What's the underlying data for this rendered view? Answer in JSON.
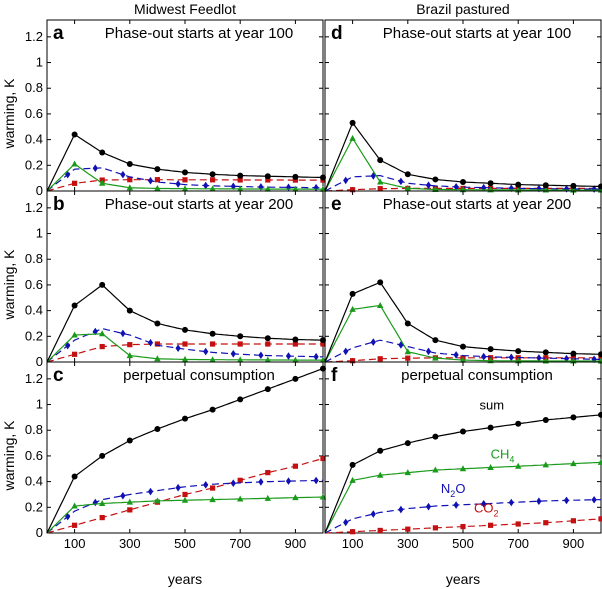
{
  "figure": {
    "columns": [
      "Midwest Feedlot",
      "Brazil pastured"
    ],
    "y_axis_label": "warming, K",
    "x_axis_label": "years",
    "series_colors": {
      "sum": "#000000",
      "CH4": "#1a9a1a",
      "N2O": "#1010b4",
      "CO2": "#c41010"
    },
    "series_markers": {
      "sum": "circle",
      "CH4": "triangle",
      "N2O": "diamond",
      "CO2": "square"
    }
  },
  "chart_data": [
    {
      "type": "line",
      "panel": "a",
      "column": "Midwest Feedlot",
      "title": "Phase-out starts at year 100",
      "xlim": [
        0,
        1000
      ],
      "ylim": [
        0,
        1.3
      ],
      "xticks": [
        100,
        300,
        500,
        700,
        900
      ],
      "yticks": [
        0,
        0.2,
        0.4,
        0.6,
        0.8,
        1,
        1.2
      ],
      "x": [
        0,
        100,
        200,
        300,
        400,
        500,
        600,
        700,
        800,
        900,
        1000
      ],
      "series": [
        {
          "key": "sum",
          "values": [
            0,
            0.44,
            0.3,
            0.21,
            0.17,
            0.145,
            0.13,
            0.12,
            0.115,
            0.11,
            0.105
          ]
        },
        {
          "key": "CH4",
          "values": [
            0,
            0.21,
            0.06,
            0.025,
            0.02,
            0.018,
            0.017,
            0.016,
            0.015,
            0.015,
            0.014
          ]
        },
        {
          "key": "N2O",
          "values": [
            0,
            0.17,
            0.18,
            0.11,
            0.07,
            0.05,
            0.04,
            0.035,
            0.03,
            0.028,
            0.025
          ]
        },
        {
          "key": "CO2",
          "values": [
            0,
            0.06,
            0.085,
            0.088,
            0.088,
            0.087,
            0.087,
            0.086,
            0.086,
            0.085,
            0.085
          ]
        }
      ]
    },
    {
      "type": "line",
      "panel": "b",
      "column": "Midwest Feedlot",
      "title": "Phase-out starts at year 200",
      "xlim": [
        0,
        1000
      ],
      "ylim": [
        0,
        1.3
      ],
      "xticks": [
        100,
        300,
        500,
        700,
        900
      ],
      "yticks": [
        0,
        0.2,
        0.4,
        0.6,
        0.8,
        1,
        1.2
      ],
      "x": [
        0,
        100,
        200,
        300,
        400,
        500,
        600,
        700,
        800,
        900,
        1000
      ],
      "series": [
        {
          "key": "sum",
          "values": [
            0,
            0.44,
            0.6,
            0.4,
            0.3,
            0.25,
            0.22,
            0.2,
            0.185,
            0.175,
            0.17
          ]
        },
        {
          "key": "CH4",
          "values": [
            0,
            0.21,
            0.22,
            0.05,
            0.025,
            0.02,
            0.018,
            0.017,
            0.016,
            0.015,
            0.015
          ]
        },
        {
          "key": "N2O",
          "values": [
            0,
            0.17,
            0.26,
            0.21,
            0.13,
            0.1,
            0.075,
            0.06,
            0.05,
            0.045,
            0.04
          ]
        },
        {
          "key": "CO2",
          "values": [
            0,
            0.06,
            0.12,
            0.135,
            0.14,
            0.14,
            0.14,
            0.14,
            0.14,
            0.14,
            0.14
          ]
        }
      ]
    },
    {
      "type": "line",
      "panel": "c",
      "column": "Midwest Feedlot",
      "title": "perpetual consumption",
      "xlim": [
        0,
        1000
      ],
      "ylim": [
        0,
        1.3
      ],
      "xticks": [
        100,
        300,
        500,
        700,
        900
      ],
      "yticks": [
        0,
        0.2,
        0.4,
        0.6,
        0.8,
        1,
        1.2
      ],
      "x": [
        0,
        100,
        200,
        300,
        400,
        500,
        600,
        700,
        800,
        900,
        1000
      ],
      "series": [
        {
          "key": "sum",
          "values": [
            0,
            0.44,
            0.6,
            0.72,
            0.81,
            0.89,
            0.96,
            1.04,
            1.12,
            1.2,
            1.28
          ]
        },
        {
          "key": "CH4",
          "values": [
            0,
            0.21,
            0.23,
            0.24,
            0.25,
            0.255,
            0.26,
            0.265,
            0.27,
            0.275,
            0.28
          ]
        },
        {
          "key": "N2O",
          "values": [
            0,
            0.17,
            0.26,
            0.3,
            0.33,
            0.36,
            0.38,
            0.39,
            0.4,
            0.405,
            0.41
          ]
        },
        {
          "key": "CO2",
          "values": [
            0,
            0.06,
            0.12,
            0.18,
            0.24,
            0.3,
            0.35,
            0.41,
            0.47,
            0.52,
            0.58
          ]
        }
      ]
    },
    {
      "type": "line",
      "panel": "d",
      "column": "Brazil pastured",
      "title": "Phase-out starts at year 100",
      "xlim": [
        0,
        1000
      ],
      "ylim": [
        0,
        1.3
      ],
      "xticks": [
        100,
        300,
        500,
        700,
        900
      ],
      "yticks": [
        0,
        0.2,
        0.4,
        0.6,
        0.8,
        1,
        1.2
      ],
      "x": [
        0,
        100,
        200,
        300,
        400,
        500,
        600,
        700,
        800,
        900,
        1000
      ],
      "series": [
        {
          "key": "sum",
          "values": [
            0,
            0.53,
            0.24,
            0.13,
            0.09,
            0.07,
            0.06,
            0.05,
            0.045,
            0.04,
            0.035
          ]
        },
        {
          "key": "CH4",
          "values": [
            0,
            0.41,
            0.07,
            0.02,
            0.012,
            0.01,
            0.009,
            0.008,
            0.008,
            0.007,
            0.007
          ]
        },
        {
          "key": "N2O",
          "values": [
            0,
            0.11,
            0.12,
            0.06,
            0.04,
            0.03,
            0.025,
            0.02,
            0.018,
            0.016,
            0.015
          ]
        },
        {
          "key": "CO2",
          "values": [
            0,
            0.01,
            0.018,
            0.02,
            0.02,
            0.02,
            0.02,
            0.02,
            0.02,
            0.02,
            0.02
          ]
        }
      ]
    },
    {
      "type": "line",
      "panel": "e",
      "column": "Brazil pastured",
      "title": "Phase-out starts at year 200",
      "xlim": [
        0,
        1000
      ],
      "ylim": [
        0,
        1.3
      ],
      "xticks": [
        100,
        300,
        500,
        700,
        900
      ],
      "yticks": [
        0,
        0.2,
        0.4,
        0.6,
        0.8,
        1,
        1.2
      ],
      "x": [
        0,
        100,
        200,
        300,
        400,
        500,
        600,
        700,
        800,
        900,
        1000
      ],
      "series": [
        {
          "key": "sum",
          "values": [
            0,
            0.53,
            0.62,
            0.3,
            0.17,
            0.12,
            0.1,
            0.085,
            0.075,
            0.065,
            0.06
          ]
        },
        {
          "key": "CH4",
          "values": [
            0,
            0.41,
            0.44,
            0.08,
            0.03,
            0.015,
            0.01,
            0.009,
            0.008,
            0.008,
            0.007
          ]
        },
        {
          "key": "N2O",
          "values": [
            0,
            0.11,
            0.17,
            0.12,
            0.07,
            0.05,
            0.04,
            0.035,
            0.03,
            0.025,
            0.02
          ]
        },
        {
          "key": "CO2",
          "values": [
            0,
            0.01,
            0.025,
            0.03,
            0.032,
            0.033,
            0.033,
            0.033,
            0.033,
            0.033,
            0.033
          ]
        }
      ]
    },
    {
      "type": "line",
      "panel": "f",
      "column": "Brazil pastured",
      "title": "perpetual consumption",
      "xlim": [
        0,
        1000
      ],
      "ylim": [
        0,
        1.3
      ],
      "xticks": [
        100,
        300,
        500,
        700,
        900
      ],
      "yticks": [
        0,
        0.2,
        0.4,
        0.6,
        0.8,
        1,
        1.2
      ],
      "x": [
        0,
        100,
        200,
        300,
        400,
        500,
        600,
        700,
        800,
        900,
        1000
      ],
      "series_labels": [
        {
          "key": "sum",
          "text": "sum",
          "sub": "",
          "tail": ""
        },
        {
          "key": "CH4",
          "text": "CH",
          "sub": "4",
          "tail": ""
        },
        {
          "key": "N2O",
          "text": "N",
          "sub": "2",
          "tail": "O"
        },
        {
          "key": "CO2",
          "text": "CO",
          "sub": "2",
          "tail": ""
        }
      ],
      "series": [
        {
          "key": "sum",
          "values": [
            0,
            0.53,
            0.64,
            0.7,
            0.75,
            0.79,
            0.82,
            0.85,
            0.88,
            0.9,
            0.92
          ]
        },
        {
          "key": "CH4",
          "values": [
            0,
            0.41,
            0.45,
            0.47,
            0.49,
            0.5,
            0.51,
            0.52,
            0.53,
            0.54,
            0.55
          ]
        },
        {
          "key": "N2O",
          "values": [
            0,
            0.11,
            0.16,
            0.19,
            0.21,
            0.22,
            0.23,
            0.24,
            0.25,
            0.255,
            0.26
          ]
        },
        {
          "key": "CO2",
          "values": [
            0,
            0.01,
            0.02,
            0.03,
            0.04,
            0.05,
            0.06,
            0.07,
            0.08,
            0.095,
            0.11
          ]
        }
      ]
    }
  ]
}
